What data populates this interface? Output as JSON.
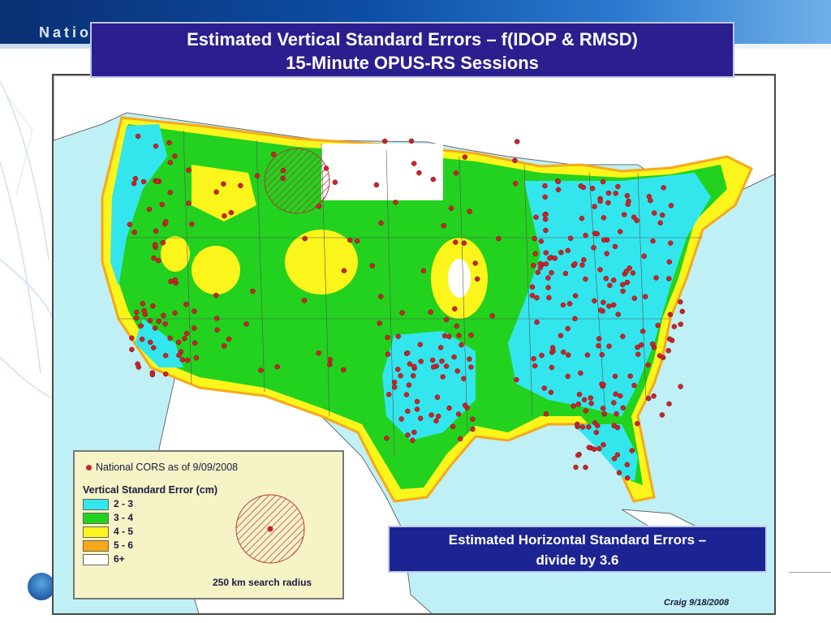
{
  "header": {
    "org_fragment": "Nation",
    "title_line1": "Estimated Vertical Standard Errors – f(IDOP & RMSD)",
    "title_line2": "15-Minute OPUS-RS Sessions"
  },
  "legend": {
    "cors_label": "National CORS as of 9/09/2008",
    "error_title": "Vertical Standard Error (cm)",
    "classes": [
      {
        "label": "2 - 3",
        "color": "#33e6ee"
      },
      {
        "label": "3 - 4",
        "color": "#22d21e"
      },
      {
        "label": "4 - 5",
        "color": "#fbf51c"
      },
      {
        "label": "5 - 6",
        "color": "#f7a81a"
      },
      {
        "label": "6+",
        "color": "#ffffff"
      }
    ],
    "radius_label": "250 km search radius"
  },
  "note": {
    "line1": "Estimated Horizontal Standard Errors –",
    "line2": "divide by 3.6"
  },
  "credit": "Craig 9/18/2008",
  "colors": {
    "ocean": "#bff0f5",
    "land_outside": "#ffffff",
    "station_dot": "#c8242a",
    "title_bg": "#2b1e8f"
  },
  "icons": [
    "noaa-logo-icon",
    "cors-station-icon",
    "search-radius-icon"
  ]
}
